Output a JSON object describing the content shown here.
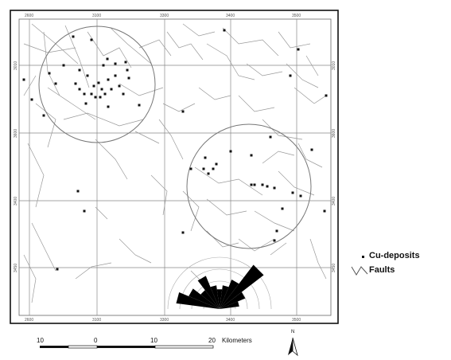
{
  "grid_labels": {
    "top": [
      "2600",
      "3100",
      "3300",
      "3400",
      "3500"
    ],
    "bottom": [
      "2600",
      "3100",
      "3300",
      "3400",
      "3500"
    ],
    "left": [
      "3010",
      "3600",
      "3400",
      "3450"
    ],
    "right": [
      "3010",
      "3600",
      "3400",
      "3450"
    ]
  },
  "scale_bar": {
    "labels": [
      "10",
      "0",
      "10",
      "20"
    ],
    "unit": "Kilometers"
  },
  "north_arrow": {
    "label": "N"
  },
  "legend": {
    "items": [
      {
        "symbol": "dot",
        "label": "Cu-deposits"
      },
      {
        "symbol": "lines",
        "label": "Faults"
      }
    ]
  },
  "colors": {
    "ink": "#111111",
    "grid": "#8a8a8a",
    "fault": "#9a9a9a",
    "rose": "#000000"
  }
}
